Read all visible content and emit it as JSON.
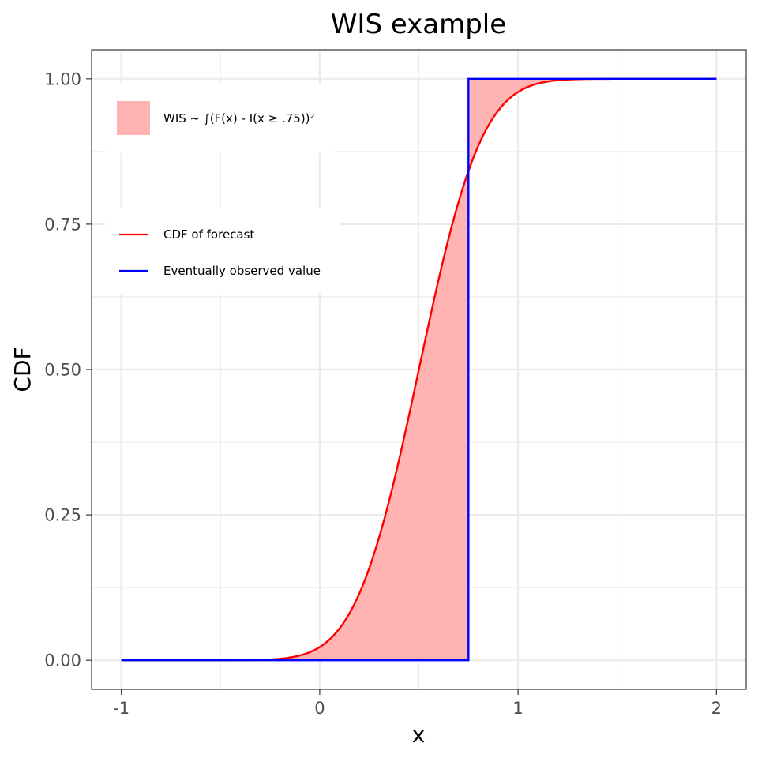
{
  "chart_data": {
    "type": "line",
    "title": "WIS example",
    "xlabel": "x",
    "ylabel": "CDF",
    "xlim": [
      -1.15,
      2.15
    ],
    "ylim": [
      -0.05,
      1.05
    ],
    "x_ticks": [
      -1,
      0,
      1,
      2
    ],
    "x_tick_labels": [
      "-1",
      "0",
      "1",
      "2"
    ],
    "y_ticks": [
      0,
      0.25,
      0.5,
      0.75,
      1
    ],
    "y_tick_labels": [
      "0.00",
      "0.25",
      "0.50",
      "0.75",
      "1.00"
    ],
    "grid": true,
    "colors": {
      "forecast": "#ff0000",
      "observed": "#0000ff",
      "fill": "#ffb3b3",
      "grid": "#ebebeb",
      "border": "#333333"
    },
    "series": [
      {
        "name": "CDF of forecast",
        "kind": "normal-cdf",
        "mean": 0.5,
        "sd": 0.25,
        "x": [
          -1,
          -0.25,
          0,
          0.25,
          0.5,
          0.75,
          1,
          1.25,
          2
        ],
        "y": [
          0,
          0.001,
          0.023,
          0.159,
          0.5,
          0.841,
          0.977,
          0.999,
          1
        ]
      },
      {
        "name": "Eventually observed value",
        "kind": "step",
        "observed": 0.75,
        "x": [
          -1,
          0.75,
          0.75,
          2
        ],
        "y": [
          0,
          0,
          1,
          1
        ]
      }
    ],
    "area": {
      "name": "WIS ~ ∫(F(x) - I(x ≥ .75))²",
      "between": [
        "CDF of forecast",
        "Eventually observed value"
      ]
    },
    "legend": {
      "position": "top-left",
      "fill_entry": "WIS ~ ∫(F(x) - I(x ≥ .75))²",
      "line_entries": [
        "CDF of forecast",
        "Eventually observed value"
      ]
    }
  }
}
